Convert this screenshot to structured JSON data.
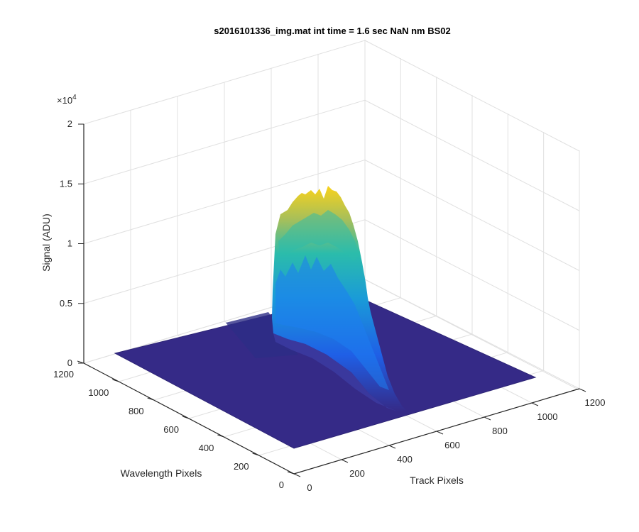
{
  "chart_data": {
    "type": "surface",
    "title": "s2016101336_img.mat int time = 1.6 sec  NaN nm BS02",
    "xlabel": "Track Pixels",
    "ylabel": "Wavelength Pixels",
    "zlabel": "Signal (ADU)",
    "exponent_label": "×10",
    "exponent_power": "4",
    "x_ticks": [
      "0",
      "200",
      "400",
      "600",
      "800",
      "1000",
      "1200"
    ],
    "y_ticks": [
      "0",
      "200",
      "400",
      "600",
      "800",
      "1000",
      "1200"
    ],
    "z_ticks": [
      "0",
      "0.5",
      "1",
      "1.5",
      "2"
    ],
    "xlim": [
      0,
      1200
    ],
    "ylim": [
      0,
      1200
    ],
    "zlim": [
      0,
      20000
    ],
    "grid": true,
    "colormap": "parula",
    "colors": {
      "baseline": "#352a87",
      "low": "#1c6ee6",
      "mid": "#21b5b0",
      "high": "#f9d21c"
    },
    "peak_region": {
      "track_range": [
        470,
        850
      ],
      "wavelength_range": [
        0,
        1000
      ],
      "peak_signal": 14500
    }
  }
}
